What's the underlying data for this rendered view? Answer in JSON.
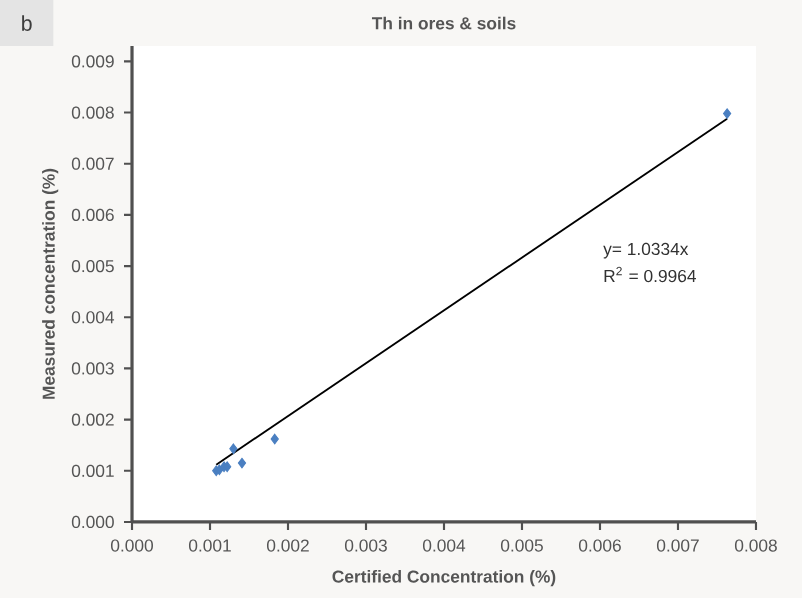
{
  "chart_data": {
    "type": "scatter",
    "title": "Th in ores & soils",
    "xlabel": "Certified Concentration (%)",
    "ylabel": "Measured concentration (%)",
    "annotations": [
      "b",
      "y= 1.0334x",
      "R$^{2}$ = 0.9964"
    ],
    "marker": "diamond",
    "grid": false,
    "xlim": [
      0,
      0.008
    ],
    "ylim": [
      0,
      0.0093
    ],
    "xticks": [
      {
        "value": 0,
        "label": "0.000"
      },
      {
        "value": 0.001,
        "label": "0.001"
      },
      {
        "value": 0.002,
        "label": "0.002"
      },
      {
        "value": 0.003,
        "label": "0.003"
      },
      {
        "value": 0.004,
        "label": "0.004"
      },
      {
        "value": 0.005,
        "label": "0.005"
      },
      {
        "value": 0.006,
        "label": "0.006"
      },
      {
        "value": 0.007,
        "label": "0.007"
      },
      {
        "value": 0.008,
        "label": "0.008"
      }
    ],
    "yticks": [
      {
        "value": 0,
        "label": "0.000"
      },
      {
        "value": 0.001,
        "label": "0.001"
      },
      {
        "value": 0.002,
        "label": "0.002"
      },
      {
        "value": 0.003,
        "label": "0.003"
      },
      {
        "value": 0.004,
        "label": "0.004"
      },
      {
        "value": 0.005,
        "label": "0.005"
      },
      {
        "value": 0.006,
        "label": "0.006"
      },
      {
        "value": 0.007,
        "label": "0.007"
      },
      {
        "value": 0.008,
        "label": "0.008"
      },
      {
        "value": 0.009,
        "label": "0.009"
      }
    ],
    "series": [
      {
        "color": "#4a7fc1",
        "x": [
          0.00108,
          0.00112,
          0.00118,
          0.00122,
          0.0013,
          0.00141,
          0.00183,
          0.00763
        ],
        "values": [
          0.001,
          0.00102,
          0.00108,
          0.00108,
          0.00143,
          0.00115,
          0.00162,
          0.00798
        ]
      },
      {
        "type": "line",
        "color": "#000000",
        "marker": "none",
        "x": [
          0.00108,
          0.00763
        ],
        "values": [
          0.00112,
          0.00788
        ]
      }
    ]
  }
}
